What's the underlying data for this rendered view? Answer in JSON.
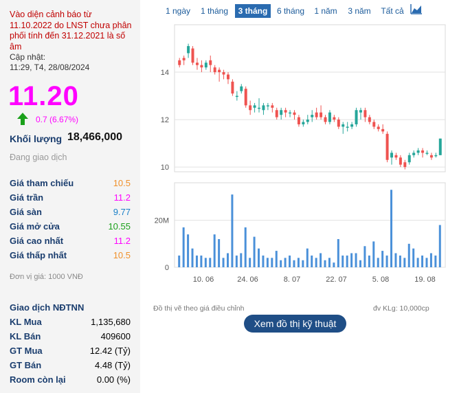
{
  "warning": "Vào diện cảnh báo từ 11.10.2022 do LNST chưa phân phối tính đến 31.12.2021 là số âm",
  "update_label": "Cập nhật:",
  "update_time": "11:29, T4, 28/08/2024",
  "price": "11.20",
  "change": "0.7 (6.67%)",
  "volume_label": "Khối lượng",
  "volume_value": "18,466,000",
  "status": "Đang giao dịch",
  "prices": [
    {
      "label": "Giá tham chiếu",
      "value": "10.5",
      "color": "#f0902a"
    },
    {
      "label": "Giá trần",
      "value": "11.2",
      "color": "#ff00ff"
    },
    {
      "label": "Giá sàn",
      "value": "9.77",
      "color": "#1a80c8"
    },
    {
      "label": "Giá mở cửa",
      "value": "10.55",
      "color": "#1aa01a"
    },
    {
      "label": "Giá cao nhất",
      "value": "11.2",
      "color": "#ff00ff"
    },
    {
      "label": "Giá thấp nhất",
      "value": "10.5",
      "color": "#f0902a"
    }
  ],
  "unit_note": "Đơn vị giá: 1000 VNĐ",
  "foreign_title": "Giao dịch NĐTNN",
  "foreign": [
    {
      "label": "KL Mua",
      "value": "1,135,680"
    },
    {
      "label": "KL Bán",
      "value": "409600"
    },
    {
      "label": "GT Mua",
      "value": "12.42 (Tỷ)"
    },
    {
      "label": "GT Bán",
      "value": "4.48 (Tỷ)"
    },
    {
      "label": "Room còn lại",
      "value": "0.00 (%)"
    }
  ],
  "tabs": [
    "1 ngày",
    "1 tháng",
    "3 tháng",
    "6 tháng",
    "1 năm",
    "3 năm",
    "Tất cả"
  ],
  "active_tab": "3 tháng",
  "chart_icon": "line-chart-icon",
  "footer_left": "Đồ thị vẽ theo giá điều chỉnh",
  "footer_right": "đv KLg: 10,000cp",
  "tech_button": "Xem đồ thị kỹ thuật",
  "colors": {
    "up": "#26a69a",
    "down": "#ef5350",
    "volume": "#4a90d9"
  },
  "chart_data": {
    "type": "candlestick",
    "price_ticks": [
      "10",
      "12",
      "14"
    ],
    "volume_ticks": [
      "0",
      "20M"
    ],
    "x_ticks": [
      "10. 06",
      "24. 06",
      "8. 07",
      "22. 07",
      "5. 08",
      "19. 08"
    ],
    "candles": [
      [
        14.5,
        14.3,
        14.6,
        14.2
      ],
      [
        14.6,
        14.5,
        14.7,
        14.3
      ],
      [
        14.8,
        15.1,
        15.2,
        14.6
      ],
      [
        15.0,
        14.4,
        15.1,
        14.3
      ],
      [
        14.4,
        14.3,
        14.6,
        14.1
      ],
      [
        14.3,
        14.2,
        14.5,
        14.0
      ],
      [
        14.2,
        14.4,
        14.5,
        14.1
      ],
      [
        14.5,
        14.3,
        14.7,
        14.0
      ],
      [
        14.2,
        14.0,
        14.3,
        13.9
      ],
      [
        14.1,
        14.0,
        14.2,
        13.6
      ],
      [
        14.0,
        13.9,
        14.1,
        13.7
      ],
      [
        13.9,
        13.7,
        14.0,
        13.5
      ],
      [
        13.6,
        13.1,
        13.7,
        13.0
      ],
      [
        13.0,
        13.0,
        13.2,
        12.8
      ],
      [
        13.2,
        13.4,
        13.5,
        13.1
      ],
      [
        13.3,
        12.6,
        13.4,
        12.5
      ],
      [
        12.6,
        12.4,
        12.8,
        12.2
      ],
      [
        12.5,
        12.6,
        12.7,
        12.3
      ],
      [
        12.5,
        12.5,
        12.9,
        12.3
      ],
      [
        12.4,
        12.6,
        12.7,
        12.2
      ],
      [
        12.6,
        12.6,
        12.7,
        12.4
      ],
      [
        12.6,
        12.5,
        12.7,
        12.3
      ],
      [
        12.4,
        12.1,
        12.5,
        12.0
      ],
      [
        12.2,
        12.4,
        12.5,
        12.0
      ],
      [
        12.4,
        12.3,
        12.5,
        12.1
      ],
      [
        12.3,
        12.3,
        12.4,
        12.1
      ],
      [
        12.3,
        12.2,
        12.4,
        12.0
      ],
      [
        12.1,
        11.8,
        12.2,
        11.7
      ],
      [
        11.8,
        11.9,
        12.0,
        11.7
      ],
      [
        11.9,
        12.0,
        12.2,
        11.8
      ],
      [
        12.1,
        12.2,
        12.4,
        11.9
      ],
      [
        12.3,
        12.1,
        12.5,
        12.0
      ],
      [
        12.3,
        12.1,
        12.6,
        12.0
      ],
      [
        12.1,
        11.9,
        12.2,
        11.8
      ],
      [
        11.9,
        12.3,
        12.4,
        11.8
      ],
      [
        12.1,
        12.0,
        12.2,
        11.9
      ],
      [
        12.0,
        11.7,
        12.1,
        11.6
      ],
      [
        11.7,
        11.8,
        11.9,
        11.4
      ],
      [
        11.7,
        11.7,
        11.9,
        11.5
      ],
      [
        11.7,
        11.8,
        11.9,
        11.6
      ],
      [
        11.8,
        12.4,
        12.5,
        11.7
      ],
      [
        12.3,
        12.4,
        12.5,
        12.0
      ],
      [
        12.4,
        12.1,
        12.5,
        11.9
      ],
      [
        12.1,
        11.9,
        12.2,
        11.8
      ],
      [
        11.9,
        11.7,
        12.0,
        11.6
      ],
      [
        11.7,
        11.6,
        11.8,
        11.5
      ],
      [
        11.6,
        11.5,
        11.8,
        11.4
      ],
      [
        11.4,
        10.3,
        11.5,
        10.2
      ],
      [
        10.4,
        10.6,
        10.7,
        10.1
      ],
      [
        10.5,
        10.4,
        10.6,
        10.3
      ],
      [
        10.4,
        10.1,
        10.5,
        10.0
      ],
      [
        10.2,
        10.0,
        10.3,
        9.9
      ],
      [
        10.2,
        10.5,
        10.6,
        10.1
      ],
      [
        10.5,
        10.6,
        10.7,
        10.4
      ],
      [
        10.6,
        10.7,
        10.8,
        10.5
      ],
      [
        10.7,
        10.6,
        10.8,
        10.4
      ],
      [
        10.6,
        10.6,
        10.7,
        10.5
      ],
      [
        10.5,
        10.4,
        10.6,
        10.3
      ],
      [
        10.5,
        10.5,
        10.6,
        10.4
      ],
      [
        10.5,
        11.2,
        11.2,
        10.5
      ]
    ],
    "volumes": [
      5,
      17,
      14,
      8,
      5,
      5,
      4,
      4,
      14,
      12,
      4,
      6,
      31,
      5,
      6,
      17,
      4,
      13,
      8,
      5,
      4,
      4,
      7,
      3,
      4,
      5,
      3,
      4,
      3,
      8,
      5,
      4,
      6,
      3,
      4,
      2,
      12,
      5,
      5,
      6,
      6,
      3,
      9,
      5,
      11,
      4,
      7,
      5,
      33,
      6,
      5,
      4,
      10,
      8,
      4,
      5,
      4,
      6,
      5,
      18
    ]
  }
}
